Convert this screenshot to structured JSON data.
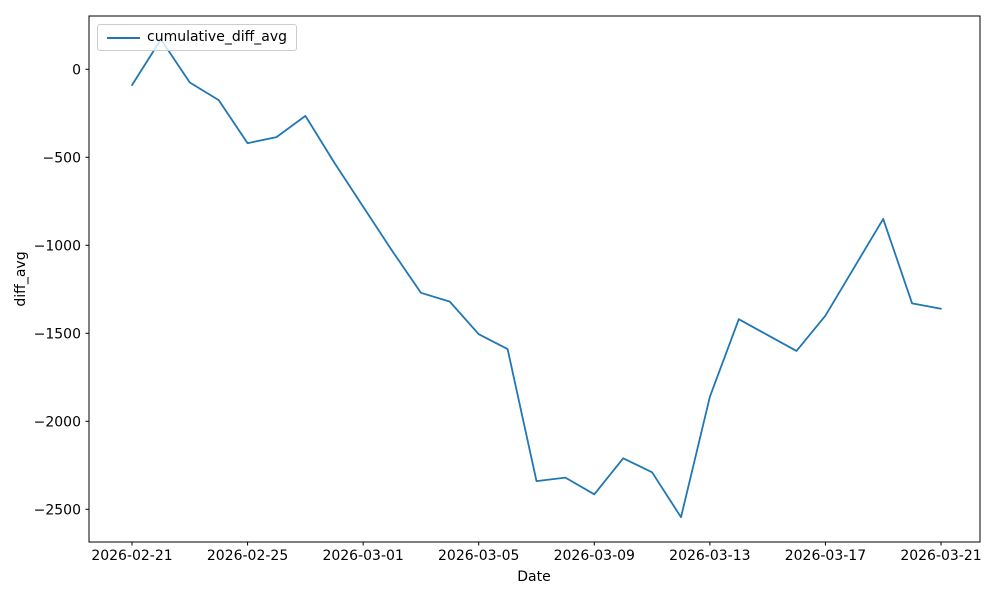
{
  "chart_data": {
    "type": "line",
    "title": "",
    "xlabel": "Date",
    "ylabel": "diff_avg",
    "grid": false,
    "legend": {
      "position": "upper left",
      "entries": [
        "cumulative_diff_avg"
      ]
    },
    "x": [
      "2026-02-21",
      "2026-02-22",
      "2026-02-23",
      "2026-02-24",
      "2026-02-25",
      "2026-02-26",
      "2026-02-27",
      "2026-02-28",
      "2026-03-01",
      "2026-03-02",
      "2026-03-03",
      "2026-03-04",
      "2026-03-05",
      "2026-03-06",
      "2026-03-07",
      "2026-03-08",
      "2026-03-09",
      "2026-03-10",
      "2026-03-11",
      "2026-03-12",
      "2026-03-13",
      "2026-03-14",
      "2026-03-15",
      "2026-03-16",
      "2026-03-17",
      "2026-03-18",
      "2026-03-19",
      "2026-03-20",
      "2026-03-21"
    ],
    "series": [
      {
        "name": "cumulative_diff_avg",
        "color": "#1f77b4",
        "values": [
          -90,
          170,
          -75,
          -175,
          -420,
          -385,
          -265,
          -530,
          -780,
          -1030,
          -1270,
          -1320,
          -1505,
          -1590,
          -2340,
          -2320,
          -2415,
          -2210,
          -2290,
          -2545,
          -1860,
          -1420,
          -1510,
          -1600,
          -1400,
          -1125,
          -850,
          -1330,
          -1360
        ]
      }
    ],
    "yticks": {
      "values": [
        0,
        -500,
        -1000,
        -1500,
        -2000,
        -2500
      ],
      "labels": [
        "0",
        "−500",
        "−1000",
        "−1500",
        "−2000",
        "−2500"
      ]
    },
    "xticks": {
      "indices": [
        0,
        4,
        8,
        12,
        16,
        20,
        24,
        28
      ],
      "labels": [
        "2026-02-21",
        "2026-02-25",
        "2026-03-01",
        "2026-03-05",
        "2026-03-09",
        "2026-03-13",
        "2026-03-17",
        "2026-03-21"
      ]
    },
    "ylim": [
      -2681,
      306
    ]
  }
}
